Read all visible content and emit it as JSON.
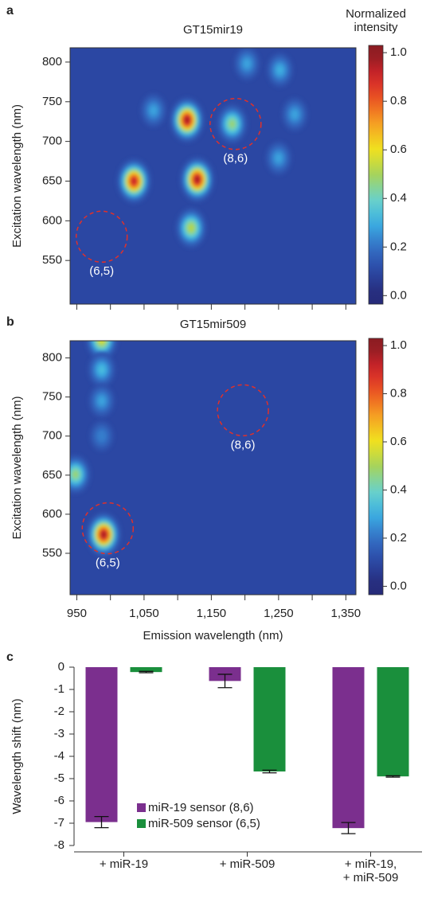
{
  "chart_data": [
    {
      "type": "heatmap",
      "panel_label": "a",
      "title": "GT15mir19",
      "ylabel": "Excitation wavelength (nm)",
      "xlim": [
        940,
        1365
      ],
      "ylim": [
        495,
        818
      ],
      "xticks": [
        950,
        1050,
        1150,
        1250,
        1350
      ],
      "xminor": [
        1000,
        1100,
        1200,
        1300
      ],
      "xtick_labels": false,
      "yticks": [
        550,
        600,
        650,
        700,
        750,
        800
      ],
      "background": 0.1,
      "peaks": [
        {
          "x": 1114,
          "y": 727,
          "intensity": 1.0
        },
        {
          "x": 1129,
          "y": 652,
          "intensity": 1.0
        },
        {
          "x": 1035,
          "y": 650,
          "intensity": 0.95
        },
        {
          "x": 1120,
          "y": 591,
          "intensity": 0.55
        },
        {
          "x": 1181,
          "y": 722,
          "intensity": 0.5
        },
        {
          "x": 1064,
          "y": 739,
          "intensity": 0.3
        },
        {
          "x": 1203,
          "y": 798,
          "intensity": 0.3
        },
        {
          "x": 1252,
          "y": 790,
          "intensity": 0.32
        },
        {
          "x": 1274,
          "y": 734,
          "intensity": 0.3
        },
        {
          "x": 1250,
          "y": 679,
          "intensity": 0.3
        }
      ],
      "annotations": [
        {
          "label": "(6,5)",
          "x": 987,
          "y": 580
        },
        {
          "label": "(8,6)",
          "x": 1186,
          "y": 722
        }
      ],
      "colorbar": {
        "title": "Normalized\nintensity",
        "lim": [
          -0.035,
          1.03
        ],
        "ticks": [
          {
            "value": 0,
            "label": "0.0"
          },
          0.2,
          0.4,
          0.6,
          0.8,
          {
            "value": 1,
            "label": "1.0"
          }
        ]
      }
    },
    {
      "type": "heatmap",
      "panel_label": "b",
      "title": "GT15mir509",
      "ylabel": "Excitation wavelength (nm)",
      "xlabel": "Emission wavelength (nm)",
      "xlim": [
        940,
        1365
      ],
      "ylim": [
        497,
        822
      ],
      "xticks": [
        950,
        {
          "value": 1050,
          "label": "1,050"
        },
        {
          "value": 1150,
          "label": "1,150"
        },
        {
          "value": 1250,
          "label": "1,250"
        },
        {
          "value": 1350,
          "label": "1,350"
        }
      ],
      "xminor": [
        1000,
        1100,
        1200,
        1300
      ],
      "yticks": [
        550,
        600,
        650,
        700,
        750,
        800
      ],
      "background": 0.1,
      "peaks": [
        {
          "x": 990,
          "y": 574,
          "intensity": 1.0
        },
        {
          "x": 948,
          "y": 651,
          "intensity": 0.5
        },
        {
          "x": 987,
          "y": 823,
          "intensity": 0.6
        },
        {
          "x": 987,
          "y": 785,
          "intensity": 0.35
        },
        {
          "x": 987,
          "y": 745,
          "intensity": 0.3
        },
        {
          "x": 987,
          "y": 700,
          "intensity": 0.25
        }
      ],
      "annotations": [
        {
          "label": "(6,5)",
          "x": 996,
          "y": 582
        },
        {
          "label": "(8,6)",
          "x": 1197,
          "y": 733
        }
      ],
      "colorbar": {
        "lim": [
          -0.035,
          1.03
        ],
        "ticks": [
          {
            "value": 0,
            "label": "0.0"
          },
          0.2,
          0.4,
          0.6,
          0.8,
          {
            "value": 1,
            "label": "1.0"
          }
        ]
      }
    },
    {
      "type": "bar",
      "panel_label": "c",
      "ylabel": "Wavelength shift (nm)",
      "categories": [
        "+ miR-19",
        "+ miR-509",
        "+ miR-19,\n+ miR-509"
      ],
      "series": [
        {
          "name": "miR-19 sensor (8,6)",
          "color": "#7b2f8e",
          "values": [
            -6.95,
            -0.62,
            -7.22
          ],
          "errors": [
            0.25,
            0.3,
            0.25
          ]
        },
        {
          "name": "miR-509 sensor (6,5)",
          "color": "#1a8f3c",
          "values": [
            -0.22,
            -4.68,
            -4.9
          ],
          "errors": [
            0.03,
            0.06,
            0.03
          ]
        }
      ],
      "ylim": [
        -8,
        0
      ],
      "yticks": [
        0,
        -1,
        -2,
        -3,
        -4,
        -5,
        -6,
        -7,
        -8
      ]
    }
  ]
}
